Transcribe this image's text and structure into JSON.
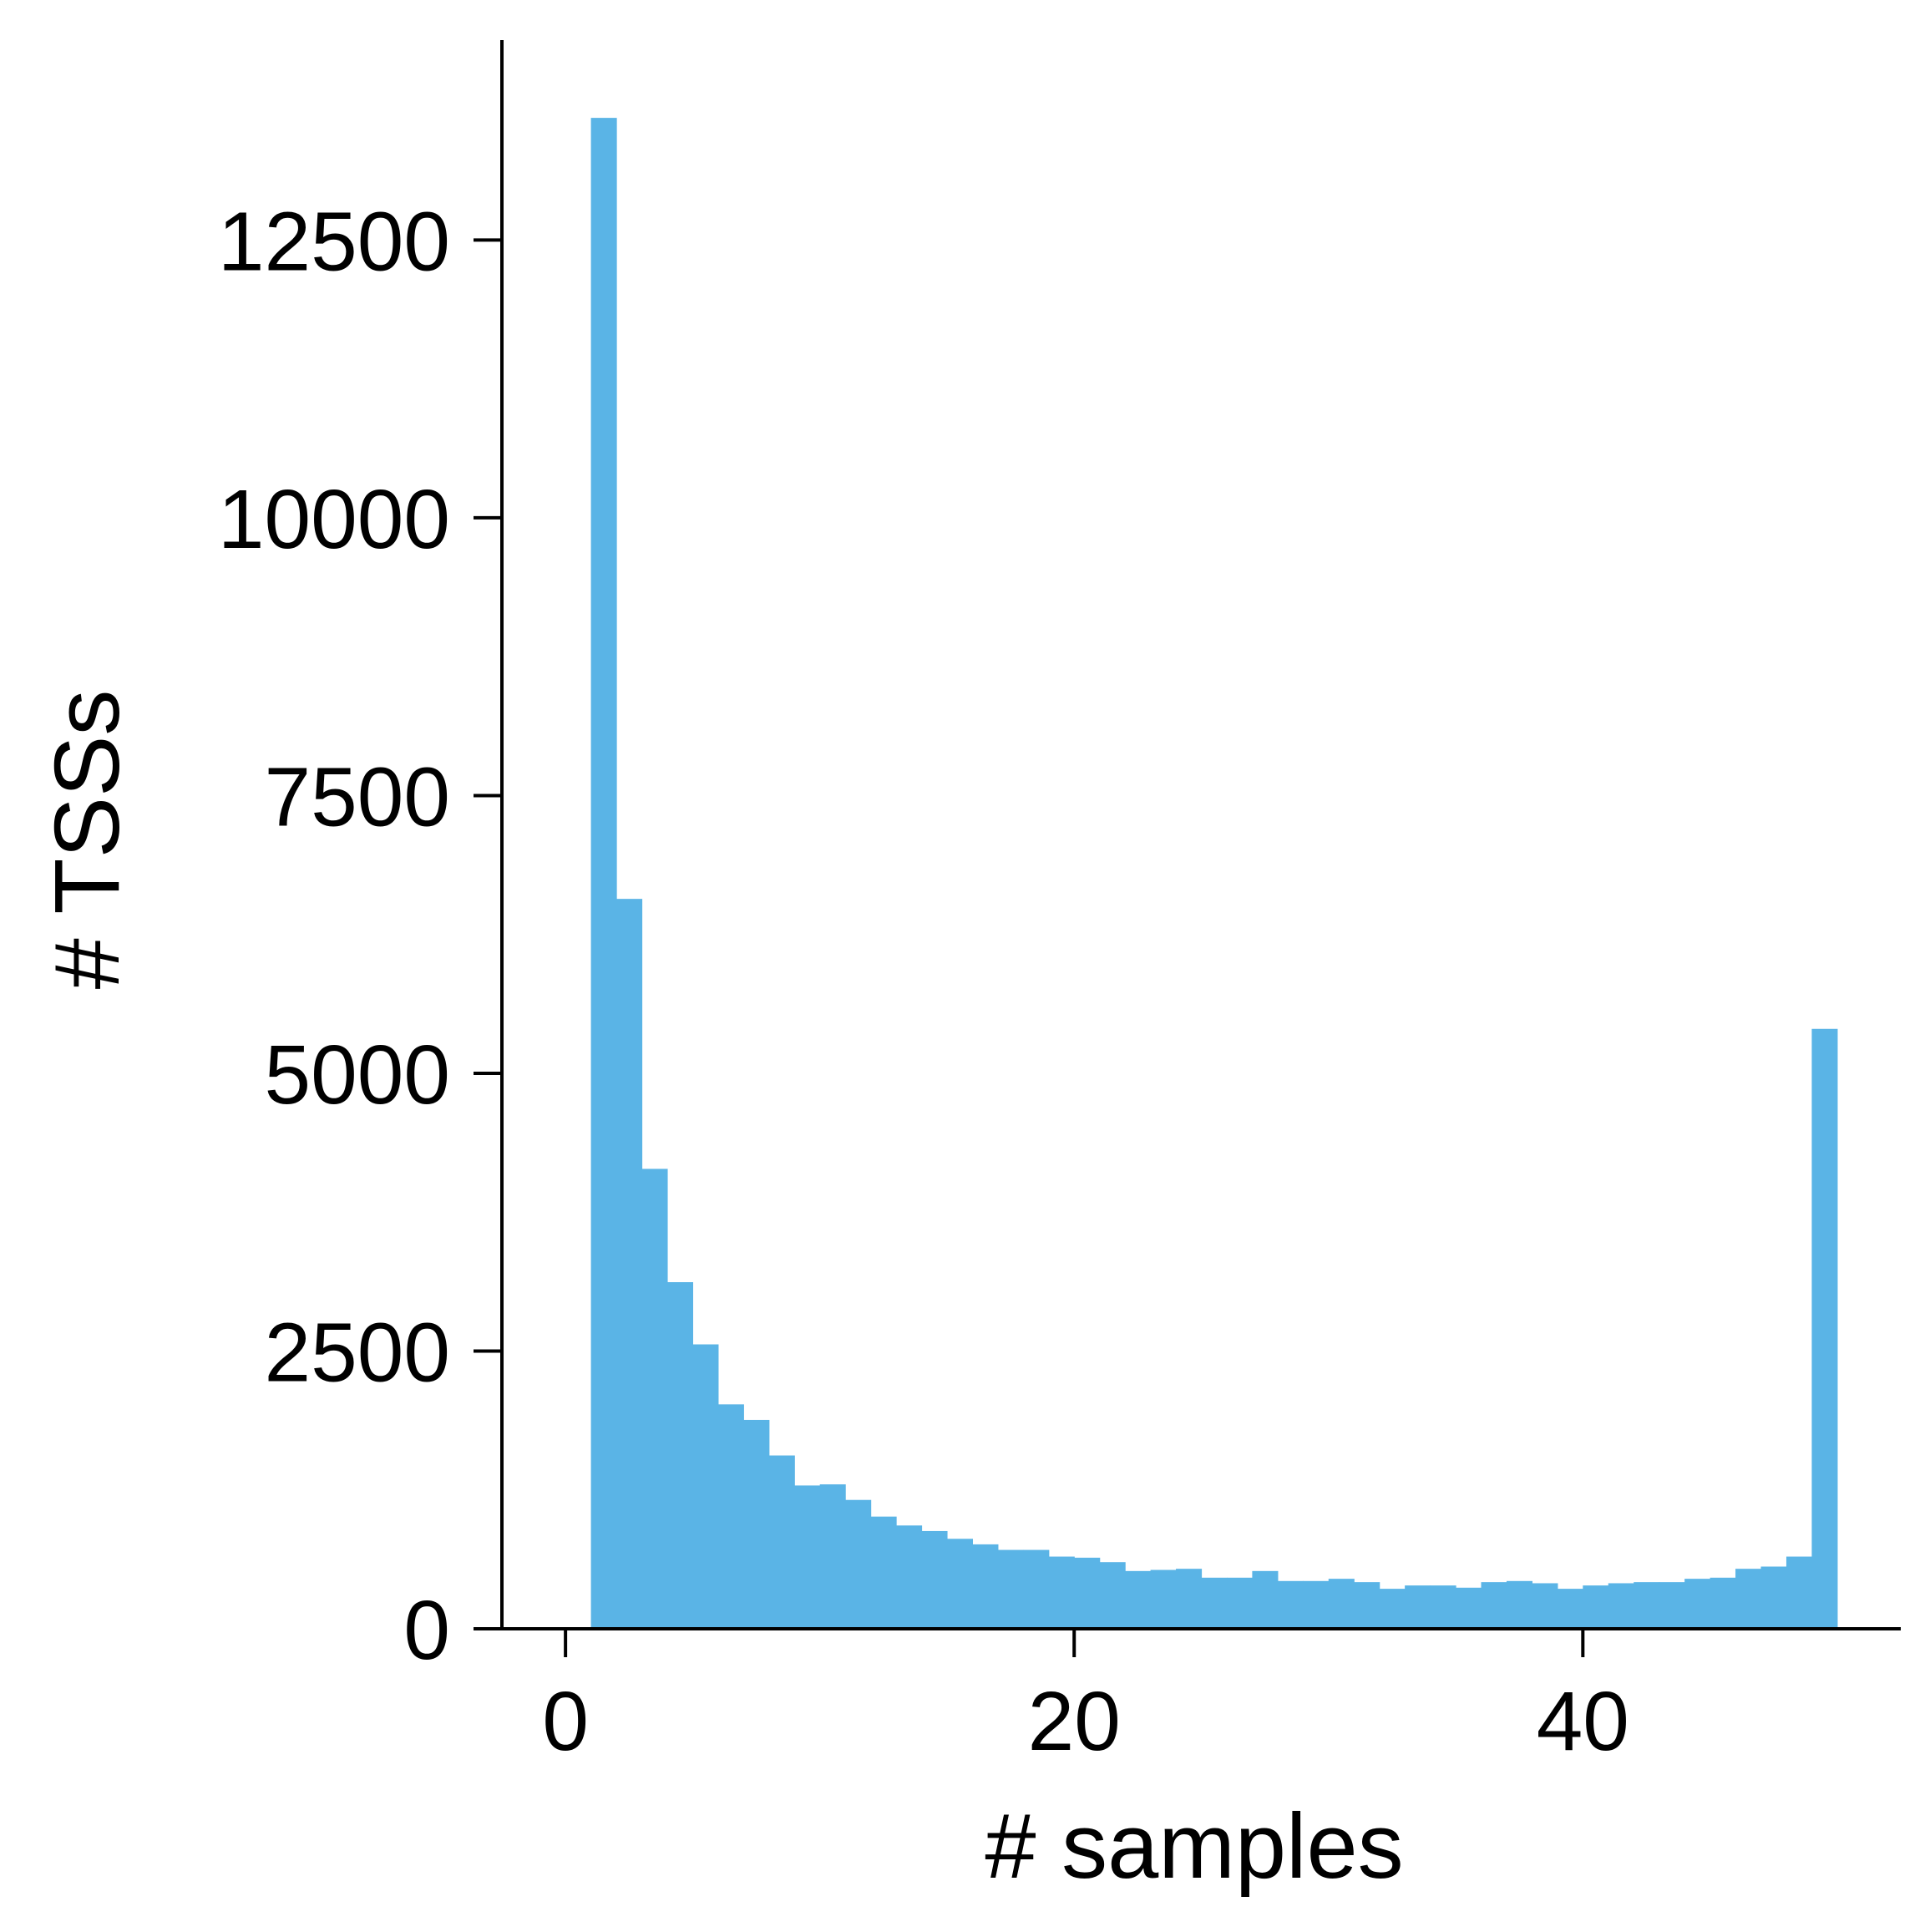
{
  "chart_data": {
    "type": "bar",
    "title": "",
    "xlabel": "# samples",
    "ylabel": "# TSSs",
    "xlim": [
      -2.5,
      52.5
    ],
    "ylim": [
      0,
      14300
    ],
    "xticks": [
      0,
      20,
      40
    ],
    "yticks": [
      0,
      2500,
      5000,
      7500,
      10000,
      12500
    ],
    "bar_color": "#5ab4e6",
    "grid": false,
    "series": [
      {
        "bin_start": 1,
        "bin_width": 1,
        "values": [
          13600,
          6570,
          4140,
          3120,
          2560,
          2020,
          1880,
          1560,
          1290,
          1300,
          1160,
          1010,
          930,
          880,
          810,
          760,
          710,
          710,
          650,
          640,
          600,
          520,
          530,
          540,
          460,
          460,
          520,
          430,
          430,
          450,
          420,
          360,
          390,
          390,
          370,
          420,
          430,
          410,
          360,
          390,
          410,
          420,
          420,
          450,
          460,
          540,
          560,
          650,
          5400
        ]
      }
    ]
  }
}
